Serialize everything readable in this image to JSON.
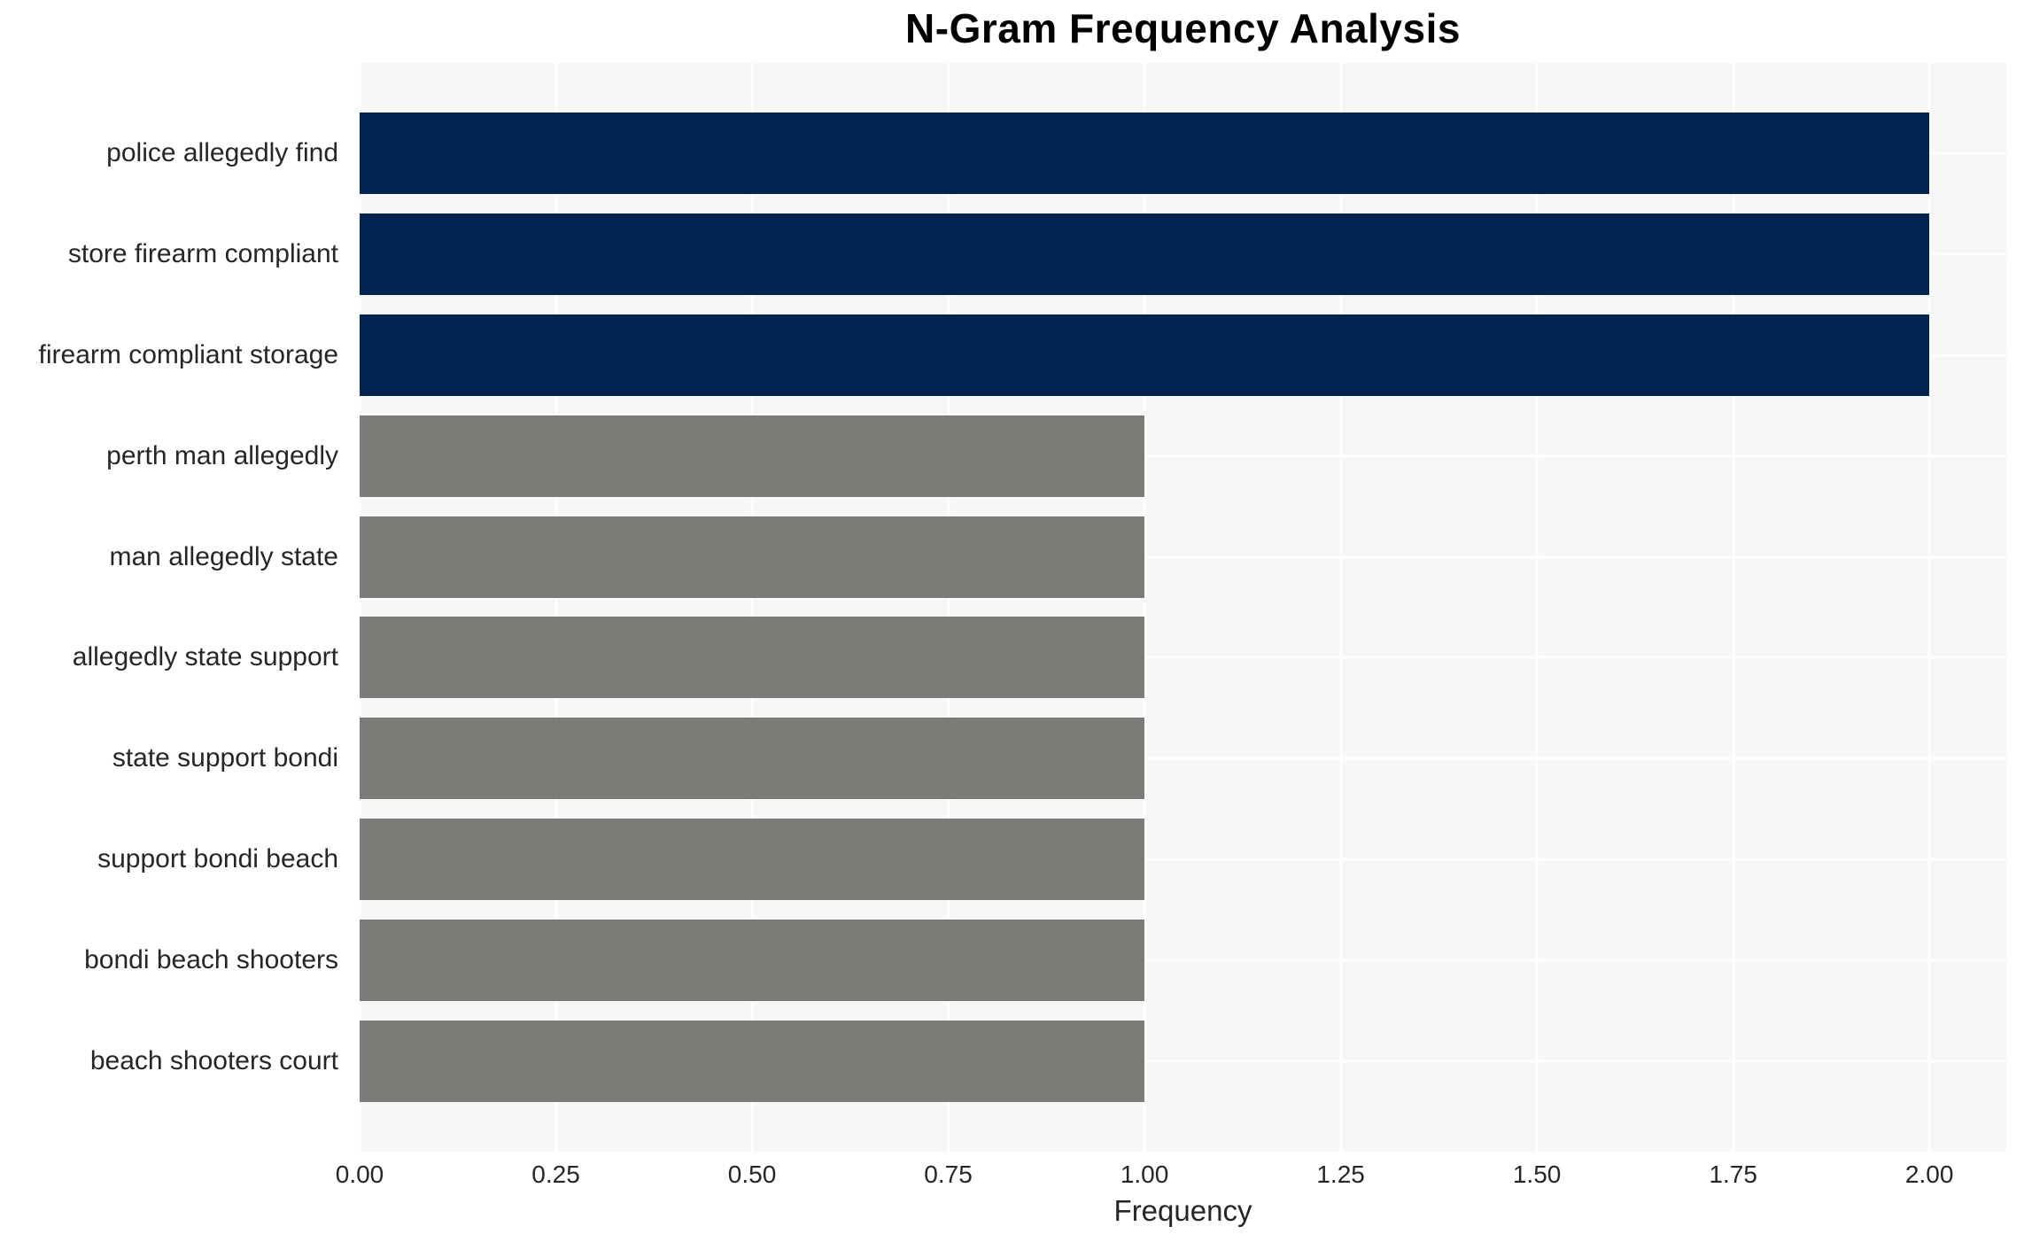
{
  "title": "N-Gram Frequency Analysis",
  "chart_data": {
    "type": "bar",
    "orientation": "horizontal",
    "title": "N-Gram Frequency Analysis",
    "xlabel": "Frequency",
    "ylabel": "",
    "categories": [
      "police allegedly find",
      "store firearm compliant",
      "firearm compliant storage",
      "perth man allegedly",
      "man allegedly state",
      "allegedly state support",
      "state support bondi",
      "support bondi beach",
      "bondi beach shooters",
      "beach shooters court"
    ],
    "values": [
      2,
      2,
      2,
      1,
      1,
      1,
      1,
      1,
      1,
      1
    ],
    "bar_tones": [
      "high",
      "high",
      "high",
      "low",
      "low",
      "low",
      "low",
      "low",
      "low",
      "low"
    ],
    "xlim": [
      0,
      2.098
    ],
    "xticks": [
      {
        "value": 0.0,
        "label": "0.00"
      },
      {
        "value": 0.25,
        "label": "0.25"
      },
      {
        "value": 0.5,
        "label": "0.50"
      },
      {
        "value": 0.75,
        "label": "0.75"
      },
      {
        "value": 1.0,
        "label": "1.00"
      },
      {
        "value": 1.25,
        "label": "1.25"
      },
      {
        "value": 1.5,
        "label": "1.50"
      },
      {
        "value": 1.75,
        "label": "1.75"
      },
      {
        "value": 2.0,
        "label": "2.00"
      }
    ],
    "grid": "on",
    "legend": "none",
    "colors": {
      "high": "#022350",
      "low": "#7b7b77",
      "plot_background": "#f7f7f7",
      "gridline": "#ffffff",
      "tick_text": "#262626",
      "title_text": "#000000"
    }
  }
}
